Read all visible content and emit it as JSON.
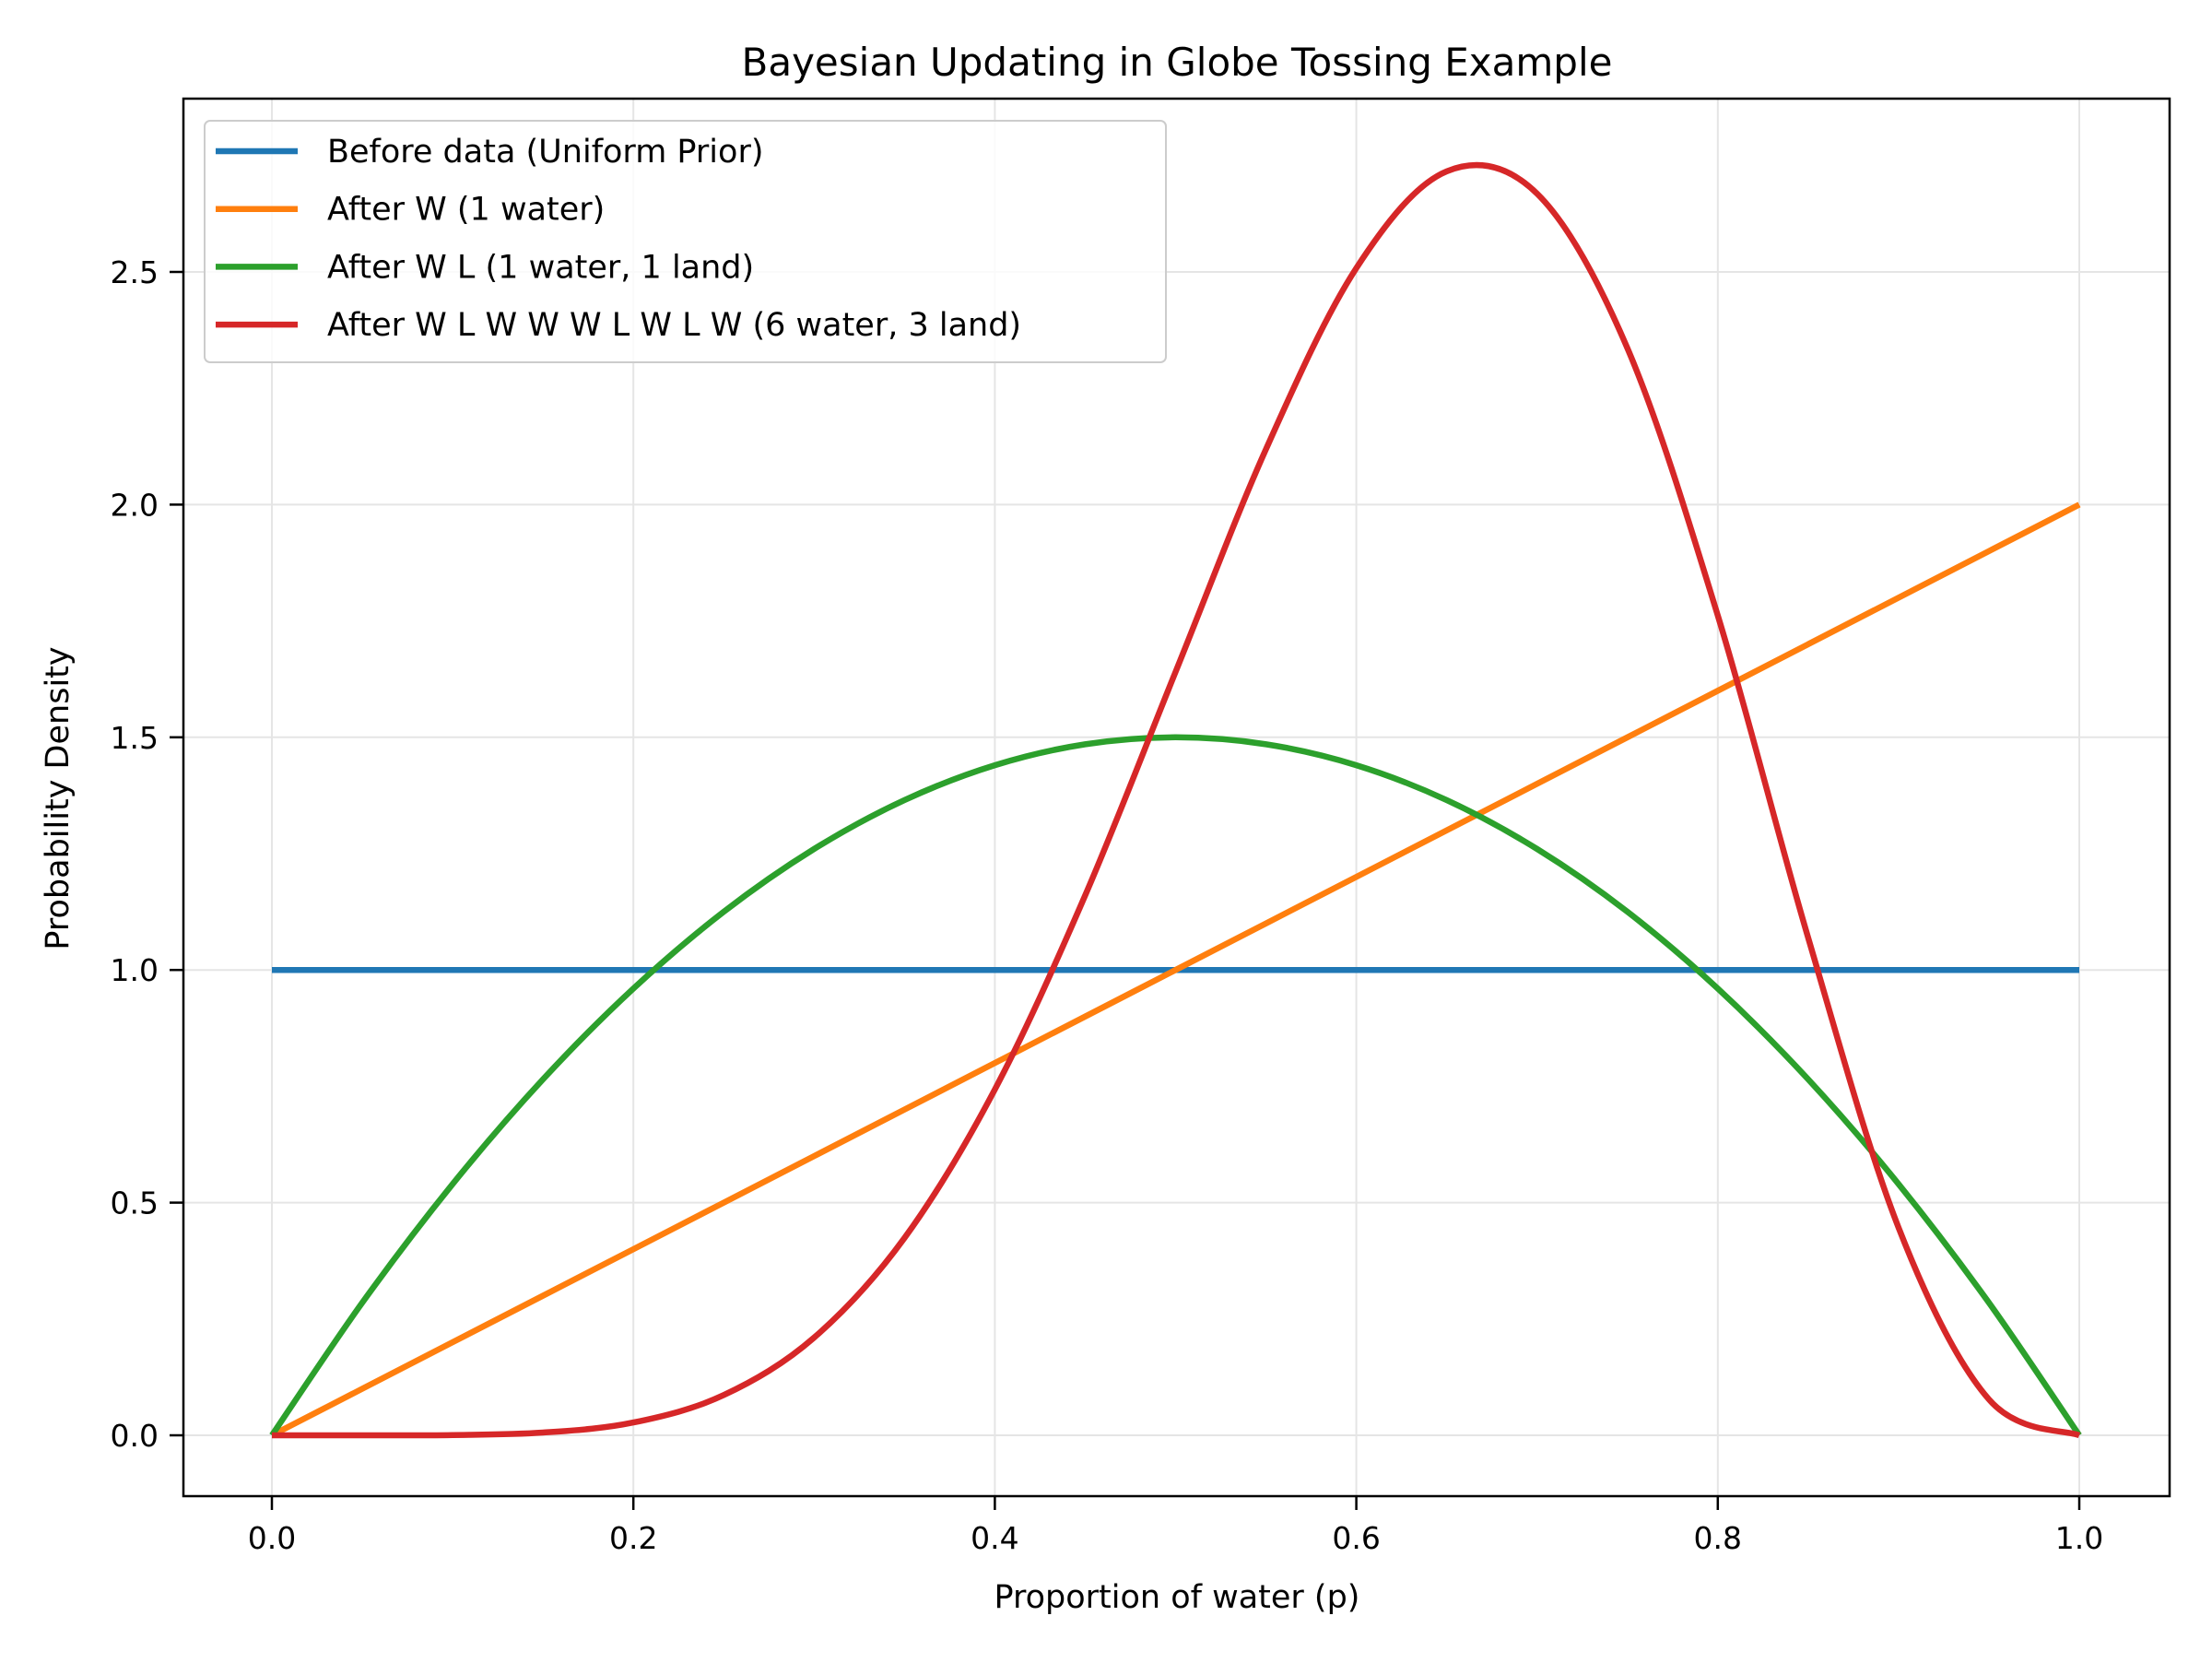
{
  "chart_data": {
    "type": "line",
    "title": "Bayesian Updating in Globe Tossing Example",
    "xlabel": "Proportion of water (p)",
    "ylabel": "Probability Density",
    "xlim": [
      -0.05,
      1.05
    ],
    "ylim": [
      -0.137,
      2.87
    ],
    "xticks": [
      "0.0",
      "0.2",
      "0.4",
      "0.6",
      "0.8",
      "1.0"
    ],
    "yticks": [
      "0.0",
      "0.5",
      "1.0",
      "1.5",
      "2.0",
      "2.5"
    ],
    "grid": true,
    "legend_position": "top-left",
    "x": [
      0,
      0.05,
      0.1,
      0.15,
      0.2,
      0.25,
      0.3,
      0.35,
      0.4,
      0.45,
      0.5,
      0.55,
      0.6,
      0.65,
      0.7,
      0.75,
      0.8,
      0.85,
      0.9,
      0.95,
      1.0
    ],
    "series": [
      {
        "name": "Before data (Uniform Prior)",
        "color": "#1f77b4",
        "values": [
          1,
          1,
          1,
          1,
          1,
          1,
          1,
          1,
          1,
          1,
          1,
          1,
          1,
          1,
          1,
          1,
          1,
          1,
          1,
          1,
          1
        ]
      },
      {
        "name": "After W (1 water)",
        "color": "#ff7f0e",
        "values": [
          0,
          0.1,
          0.2,
          0.3,
          0.4,
          0.5,
          0.6,
          0.7,
          0.8,
          0.9,
          1.0,
          1.1,
          1.2,
          1.3,
          1.4,
          1.5,
          1.6,
          1.7,
          1.8,
          1.9,
          2.0
        ]
      },
      {
        "name": "After W L (1 water, 1 land)",
        "color": "#2ca02c",
        "values": [
          0,
          0.285,
          0.54,
          0.765,
          0.96,
          1.125,
          1.26,
          1.365,
          1.44,
          1.485,
          1.5,
          1.485,
          1.44,
          1.365,
          1.26,
          1.125,
          0.96,
          0.765,
          0.54,
          0.285,
          0
        ]
      },
      {
        "name": "After W L W W W L W L W (6 water, 3 land)",
        "color": "#d62728",
        "values": [
          0,
          0.0,
          0.0006,
          0.0059,
          0.0275,
          0.0865,
          0.21,
          0.424,
          0.7432,
          1.1605,
          1.6406,
          2.119,
          2.5082,
          2.7162,
          2.6682,
          2.336,
          1.7616,
          1.0692,
          0.4464,
          0.0772,
          0
        ]
      }
    ]
  }
}
